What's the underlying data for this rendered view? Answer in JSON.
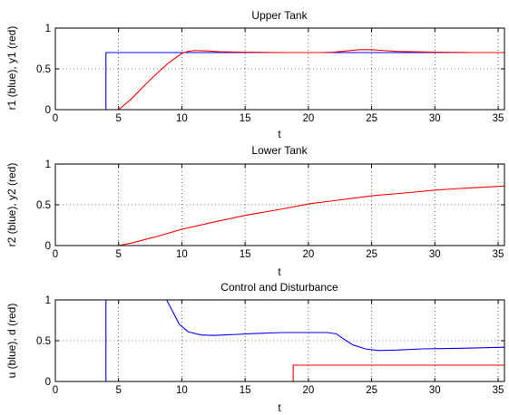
{
  "chart_data": [
    {
      "type": "line",
      "title": "Upper Tank",
      "xlabel": "t",
      "ylabel": "r1 (blue), y1 (red)",
      "xlim": [
        0,
        35.5
      ],
      "ylim": [
        0,
        1
      ],
      "xticks": [
        0,
        5,
        10,
        15,
        20,
        25,
        30,
        35
      ],
      "yticks": [
        0,
        0.5,
        1
      ],
      "grid": true,
      "series": [
        {
          "name": "r1",
          "color": "#0000ff",
          "x": [
            0,
            4.0,
            4.0,
            35.5
          ],
          "y": [
            0,
            0,
            0.7,
            0.7
          ]
        },
        {
          "name": "y1",
          "color": "#ff0000",
          "x": [
            0,
            5.0,
            6.0,
            7.0,
            8.0,
            9.0,
            10.0,
            10.5,
            11.0,
            12.0,
            13.0,
            15.0,
            18.0,
            21.0,
            22.0,
            23.0,
            24.0,
            25.0,
            26.0,
            27.0,
            30.0,
            33.0,
            35.5
          ],
          "y": [
            0,
            0,
            0.13,
            0.29,
            0.44,
            0.58,
            0.69,
            0.715,
            0.725,
            0.72,
            0.71,
            0.705,
            0.7,
            0.7,
            0.705,
            0.72,
            0.735,
            0.735,
            0.725,
            0.715,
            0.705,
            0.7,
            0.7
          ]
        }
      ]
    },
    {
      "type": "line",
      "title": "Lower Tank",
      "xlabel": "t",
      "ylabel": "r2 (blue), y2 (red)",
      "xlim": [
        0,
        35.5
      ],
      "ylim": [
        0,
        1
      ],
      "xticks": [
        0,
        5,
        10,
        15,
        20,
        25,
        30,
        35
      ],
      "yticks": [
        0,
        0.5,
        1
      ],
      "grid": true,
      "series": [
        {
          "name": "r2",
          "color": "#0000ff",
          "x": [
            0,
            35.5
          ],
          "y": [
            0,
            0
          ]
        },
        {
          "name": "y2",
          "color": "#ff0000",
          "x": [
            0,
            5.0,
            6.0,
            7.0,
            8.0,
            10.0,
            12.0,
            15.0,
            18.0,
            20.0,
            22.0,
            25.0,
            28.0,
            30.0,
            32.0,
            35.5
          ],
          "y": [
            0,
            0,
            0.03,
            0.07,
            0.11,
            0.2,
            0.27,
            0.37,
            0.45,
            0.51,
            0.55,
            0.61,
            0.65,
            0.68,
            0.7,
            0.73
          ]
        }
      ]
    },
    {
      "type": "line",
      "title": "Control and Disturbance",
      "xlabel": "t",
      "ylabel": "u (blue), d (red)",
      "xlim": [
        0,
        35.5
      ],
      "ylim": [
        0,
        1
      ],
      "xticks": [
        0,
        5,
        10,
        15,
        20,
        25,
        30,
        35
      ],
      "yticks": [
        0,
        0.5,
        1
      ],
      "grid": true,
      "series": [
        {
          "name": "u",
          "color": "#0000ff",
          "x": [
            0,
            4.0,
            4.0,
            8.8,
            9.3,
            9.8,
            10.5,
            11.5,
            12.5,
            14.0,
            16.0,
            18.0,
            20.0,
            21.5,
            22.2,
            22.8,
            23.5,
            24.5,
            25.5,
            27.0,
            29.0,
            31.0,
            33.0,
            35.5
          ],
          "y": [
            0,
            0,
            1.0,
            1.0,
            0.85,
            0.7,
            0.61,
            0.57,
            0.565,
            0.575,
            0.59,
            0.6,
            0.6,
            0.6,
            0.585,
            0.52,
            0.45,
            0.4,
            0.38,
            0.385,
            0.4,
            0.405,
            0.41,
            0.42
          ]
        },
        {
          "name": "d",
          "color": "#ff0000",
          "x": [
            0,
            18.8,
            18.8,
            35.5
          ],
          "y": [
            0,
            0,
            0.2,
            0.2
          ]
        }
      ]
    }
  ]
}
